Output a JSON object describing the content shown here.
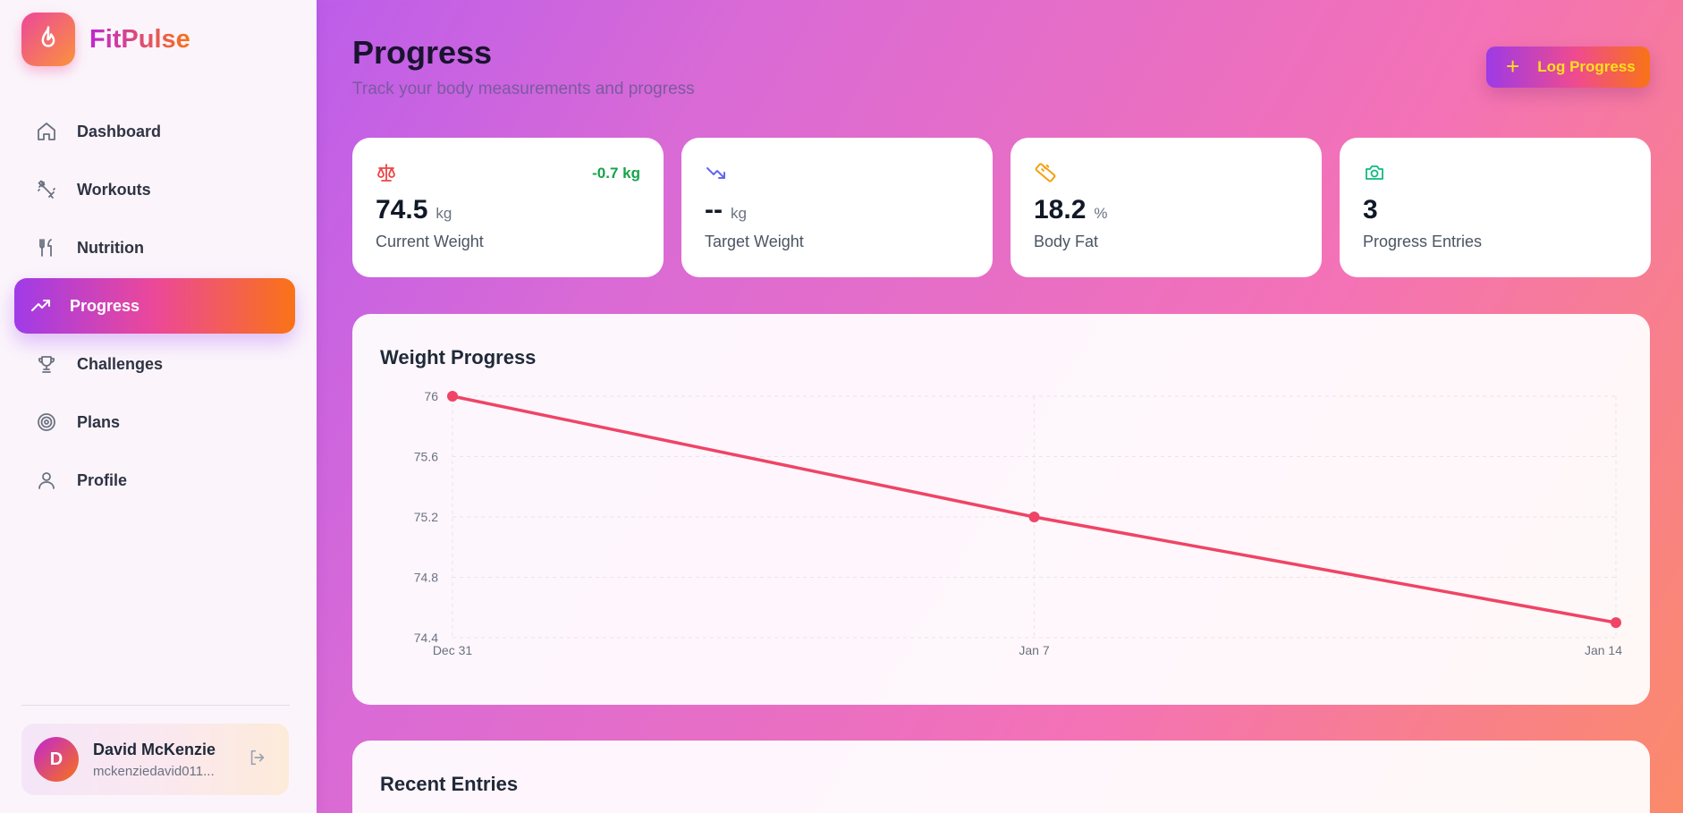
{
  "app": {
    "name": "FitPulse"
  },
  "sidebar": {
    "items": [
      {
        "label": "Dashboard",
        "icon": "home-icon"
      },
      {
        "label": "Workouts",
        "icon": "dumbbell-icon"
      },
      {
        "label": "Nutrition",
        "icon": "utensils-icon"
      },
      {
        "label": "Progress",
        "icon": "trending-up-icon",
        "active": true
      },
      {
        "label": "Challenges",
        "icon": "trophy-icon"
      },
      {
        "label": "Plans",
        "icon": "target-icon"
      },
      {
        "label": "Profile",
        "icon": "user-icon"
      }
    ]
  },
  "user": {
    "initial": "D",
    "name": "David McKenzie",
    "email": "mckenziedavid011..."
  },
  "page": {
    "title": "Progress",
    "subtitle": "Track your body measurements and progress",
    "log_button": "Log Progress"
  },
  "stats": [
    {
      "icon": "scale-icon",
      "value": "74.5",
      "unit": "kg",
      "label": "Current Weight",
      "change": "-0.7 kg",
      "icon_color": "#ef4444"
    },
    {
      "icon": "trending-down-icon",
      "value": "--",
      "unit": "kg",
      "label": "Target Weight",
      "icon_color": "#6366f1"
    },
    {
      "icon": "ruler-icon",
      "value": "18.2",
      "unit": "%",
      "label": "Body Fat",
      "icon_color": "#f59e0b"
    },
    {
      "icon": "camera-icon",
      "value": "3",
      "unit": "",
      "label": "Progress Entries",
      "icon_color": "#10b981"
    }
  ],
  "chart": {
    "title": "Weight Progress"
  },
  "chart_data": {
    "type": "line",
    "title": "Weight Progress",
    "x": [
      "Dec 31",
      "Jan 7",
      "Jan 14"
    ],
    "series": [
      {
        "values": [
          76.0,
          75.2,
          74.5
        ]
      }
    ],
    "yticks": [
      "76",
      "75.6",
      "75.2",
      "74.8",
      "74.4"
    ],
    "ytick_values": [
      76,
      75.6,
      75.2,
      74.8,
      74.4
    ],
    "ylim": [
      74.4,
      76
    ],
    "grid": true,
    "color": "#ef4466"
  },
  "entries": {
    "title": "Recent Entries"
  }
}
